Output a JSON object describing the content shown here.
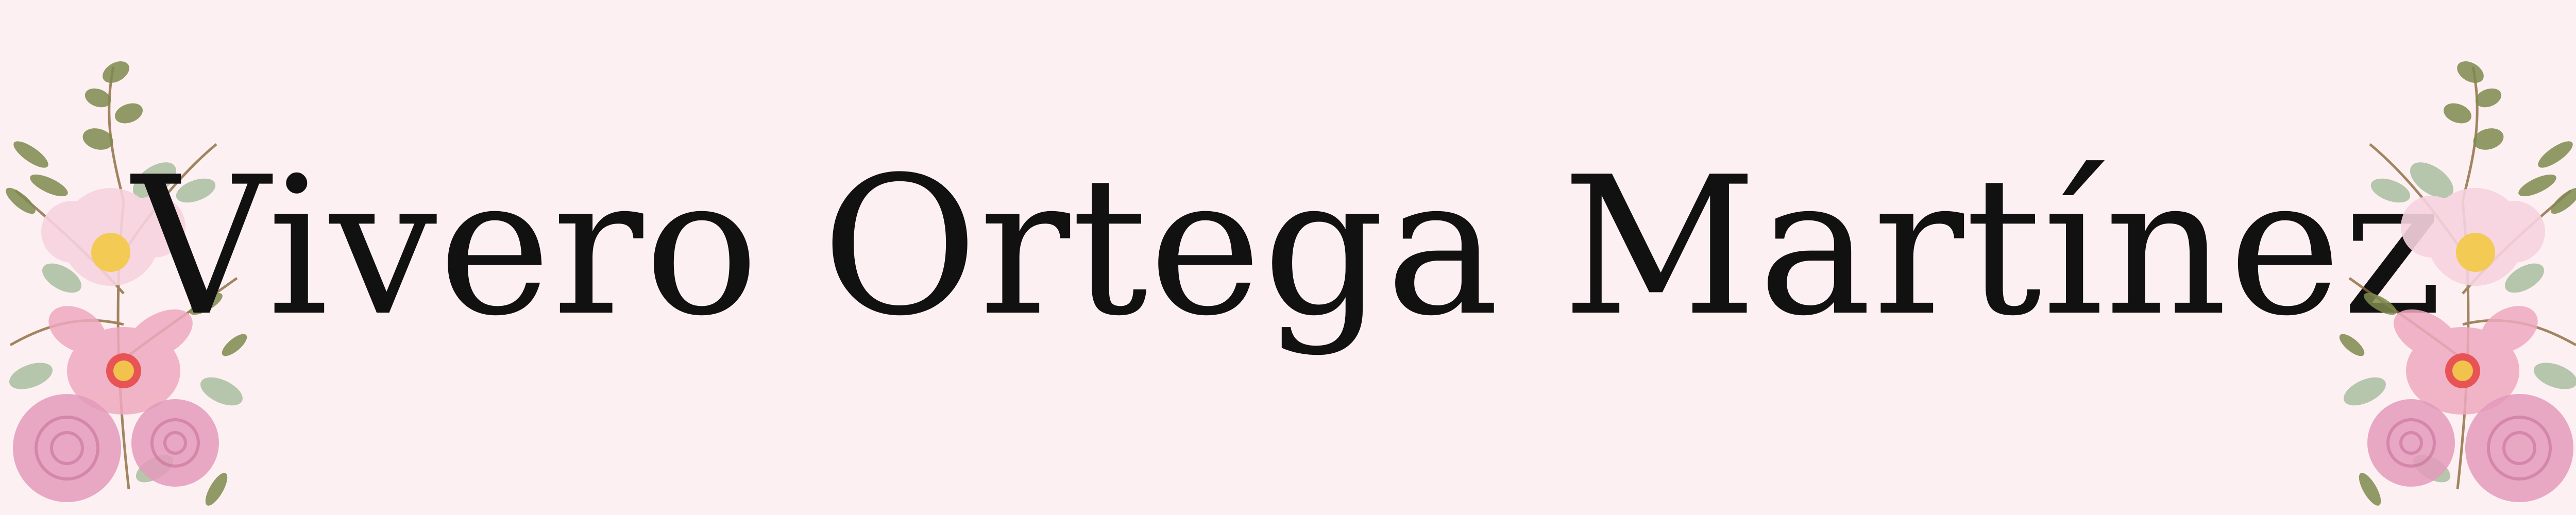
{
  "banner": {
    "title": "Vivero Ortega Martínez",
    "background_color": "#FDF0F2",
    "text_color": "#111111"
  },
  "decoration": {
    "left": "watercolor-floral-bouquet",
    "right": "watercolor-floral-bouquet",
    "colors": {
      "leaf_olive": "#7E8B4E",
      "leaf_sage": "#A9BFA0",
      "petal_light_pink": "#F7D3DF",
      "petal_pink": "#EFA9C0",
      "rose_pink": "#E49ABB",
      "flower_center": "#E84A4A",
      "stamen_yellow": "#F2C94C",
      "twig_brown": "#8A6A3C"
    }
  }
}
